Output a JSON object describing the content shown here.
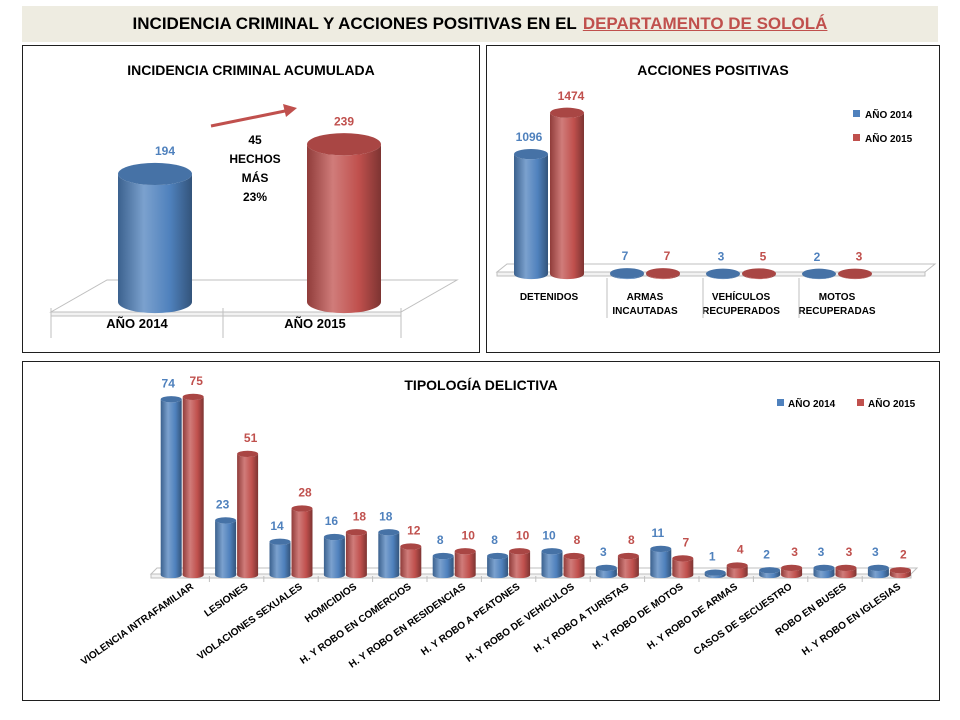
{
  "title": {
    "main": "INCIDENCIA CRIMINAL Y ACCIONES POSITIVAS EN EL",
    "accent": "DEPARTAMENTO  DE SOLOLÁ"
  },
  "colors": {
    "s2014": "#4f81bd",
    "s2015": "#c0504d",
    "banner": "#eeece1"
  },
  "chart_data": [
    {
      "type": "bar",
      "title": "INCIDENCIA CRIMINAL ACUMULADA",
      "categories": [
        "AÑO 2014",
        "AÑO 2015"
      ],
      "values": [
        194,
        239
      ],
      "annotation": [
        "45",
        "HECHOS",
        "MÁS",
        "23%"
      ]
    },
    {
      "type": "bar",
      "title": "ACCIONES POSITIVAS",
      "categories": [
        [
          "DETENIDOS"
        ],
        [
          "ARMAS",
          "INCAUTADAS"
        ],
        [
          "VEHÍCULOS",
          "RECUPERADOS"
        ],
        [
          "MOTOS",
          "RECUPERADAS"
        ]
      ],
      "series": [
        {
          "name": "AÑO 2014",
          "values": [
            1096,
            7,
            3,
            2
          ]
        },
        {
          "name": "AÑO 2015",
          "values": [
            1474,
            7,
            5,
            3
          ]
        }
      ],
      "legend": "top-right"
    },
    {
      "type": "bar",
      "title": "TIPOLOGÍA  DELICTIVA",
      "categories": [
        "VIOLENCIA INTRAFAMILIAR",
        "LESIONES",
        "VIOLACIONES SEXUALES",
        "HOMICIDIOS",
        "H. Y ROBO EN COMERCIOS",
        "H. Y ROBO EN RESIDENCIAS",
        "H. Y ROBO A PEATONES",
        "H. Y ROBO DE VEHICULOS",
        "H. Y ROBO A TURISTAS",
        "H. Y ROBO DE MOTOS",
        "H. Y ROBO DE ARMAS",
        "CASOS DE SECUESTRO",
        "ROBO EN BUSES",
        "H. Y ROBO EN IGLESIAS"
      ],
      "series": [
        {
          "name": "AÑO 2014",
          "values": [
            74,
            23,
            14,
            16,
            18,
            8,
            8,
            10,
            3,
            11,
            1,
            2,
            3,
            3
          ]
        },
        {
          "name": "AÑO 2015",
          "values": [
            75,
            51,
            28,
            18,
            12,
            10,
            10,
            8,
            8,
            7,
            4,
            3,
            3,
            2
          ]
        }
      ],
      "legend": "top-right"
    }
  ]
}
